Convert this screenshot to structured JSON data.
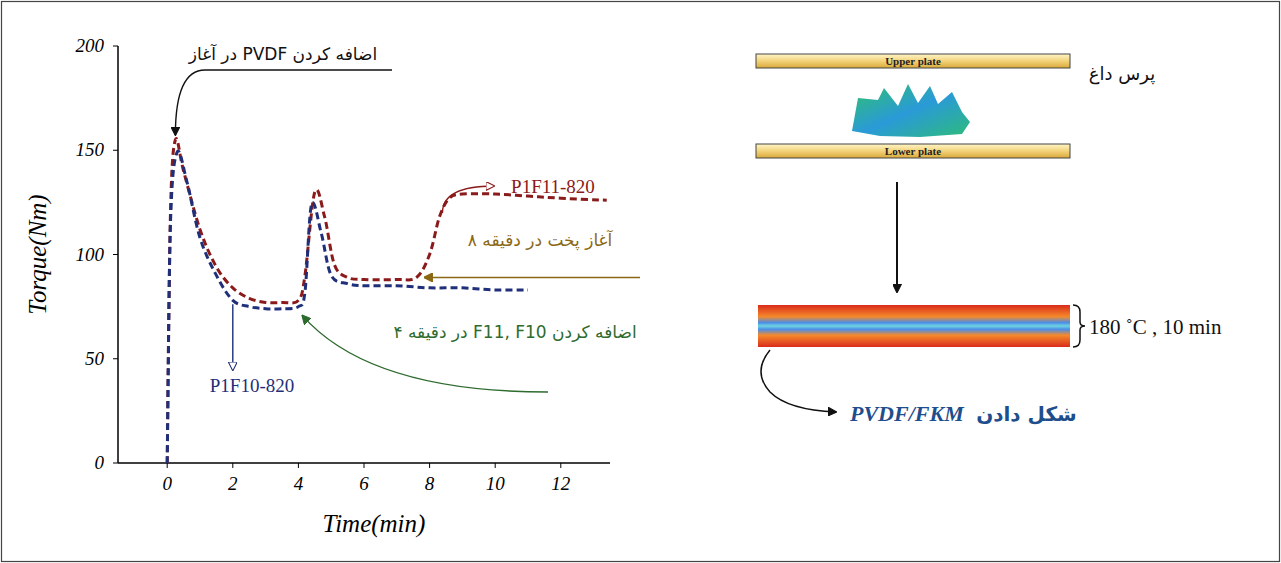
{
  "chart_data": {
    "type": "line",
    "x_label": "Time(min)",
    "y_label": "Torque(Nm)",
    "xlim": [
      -1.5,
      13.5
    ],
    "xticks": [
      0,
      2,
      4,
      6,
      8,
      10,
      12
    ],
    "ylim": [
      0,
      200
    ],
    "yticks": [
      0,
      50,
      100,
      150,
      200
    ],
    "grid": false,
    "series": [
      {
        "name": "P1F11-820",
        "color": "#8b1a1a",
        "line_style": "dashed",
        "x": [
          0,
          0.1,
          0.25,
          0.5,
          1,
          1.5,
          2,
          2.5,
          3,
          3.5,
          4,
          4.2,
          4.5,
          4.8,
          5.1,
          5.5,
          6,
          7,
          7.6,
          8,
          8.3,
          8.6,
          9,
          10,
          11,
          12,
          13.4
        ],
        "values": [
          0,
          120,
          155,
          140,
          112,
          94,
          84,
          79,
          77,
          77,
          78,
          90,
          130,
          118,
          95,
          89,
          88,
          88,
          89,
          100,
          118,
          127,
          129,
          129,
          128,
          127,
          126
        ]
      },
      {
        "name": "P1F10-820",
        "color": "#1f2f7a",
        "line_style": "dashed",
        "x": [
          0,
          0.1,
          0.3,
          0.6,
          1,
          1.5,
          2,
          2.5,
          3,
          3.5,
          4,
          4.2,
          4.4,
          4.7,
          5,
          5.5,
          6,
          7,
          8,
          9,
          10,
          11
        ],
        "values": [
          0,
          115,
          149,
          135,
          108,
          90,
          78,
          75,
          74,
          74,
          75,
          82,
          124,
          110,
          90,
          86,
          85,
          85,
          84,
          84,
          83,
          83
        ]
      }
    ],
    "annotations": [
      {
        "text": "اضافه کردن PVDF در آغاز",
        "color": "#111111"
      },
      {
        "text": "آغاز پخت در دقیقه ۸",
        "color": "#8b6914"
      },
      {
        "text": "اضافه کردن F11, F10 در دقیقه ۴",
        "color": "#2e6b2e"
      }
    ]
  },
  "diagram": {
    "upper_plate": "Upper plate",
    "lower_plate": "Lower plate",
    "press_label": "پرس داغ",
    "condition": "180 ˚C , 10 min",
    "result_label": "شکل دادن",
    "result_material": "PVDF/FKM"
  }
}
